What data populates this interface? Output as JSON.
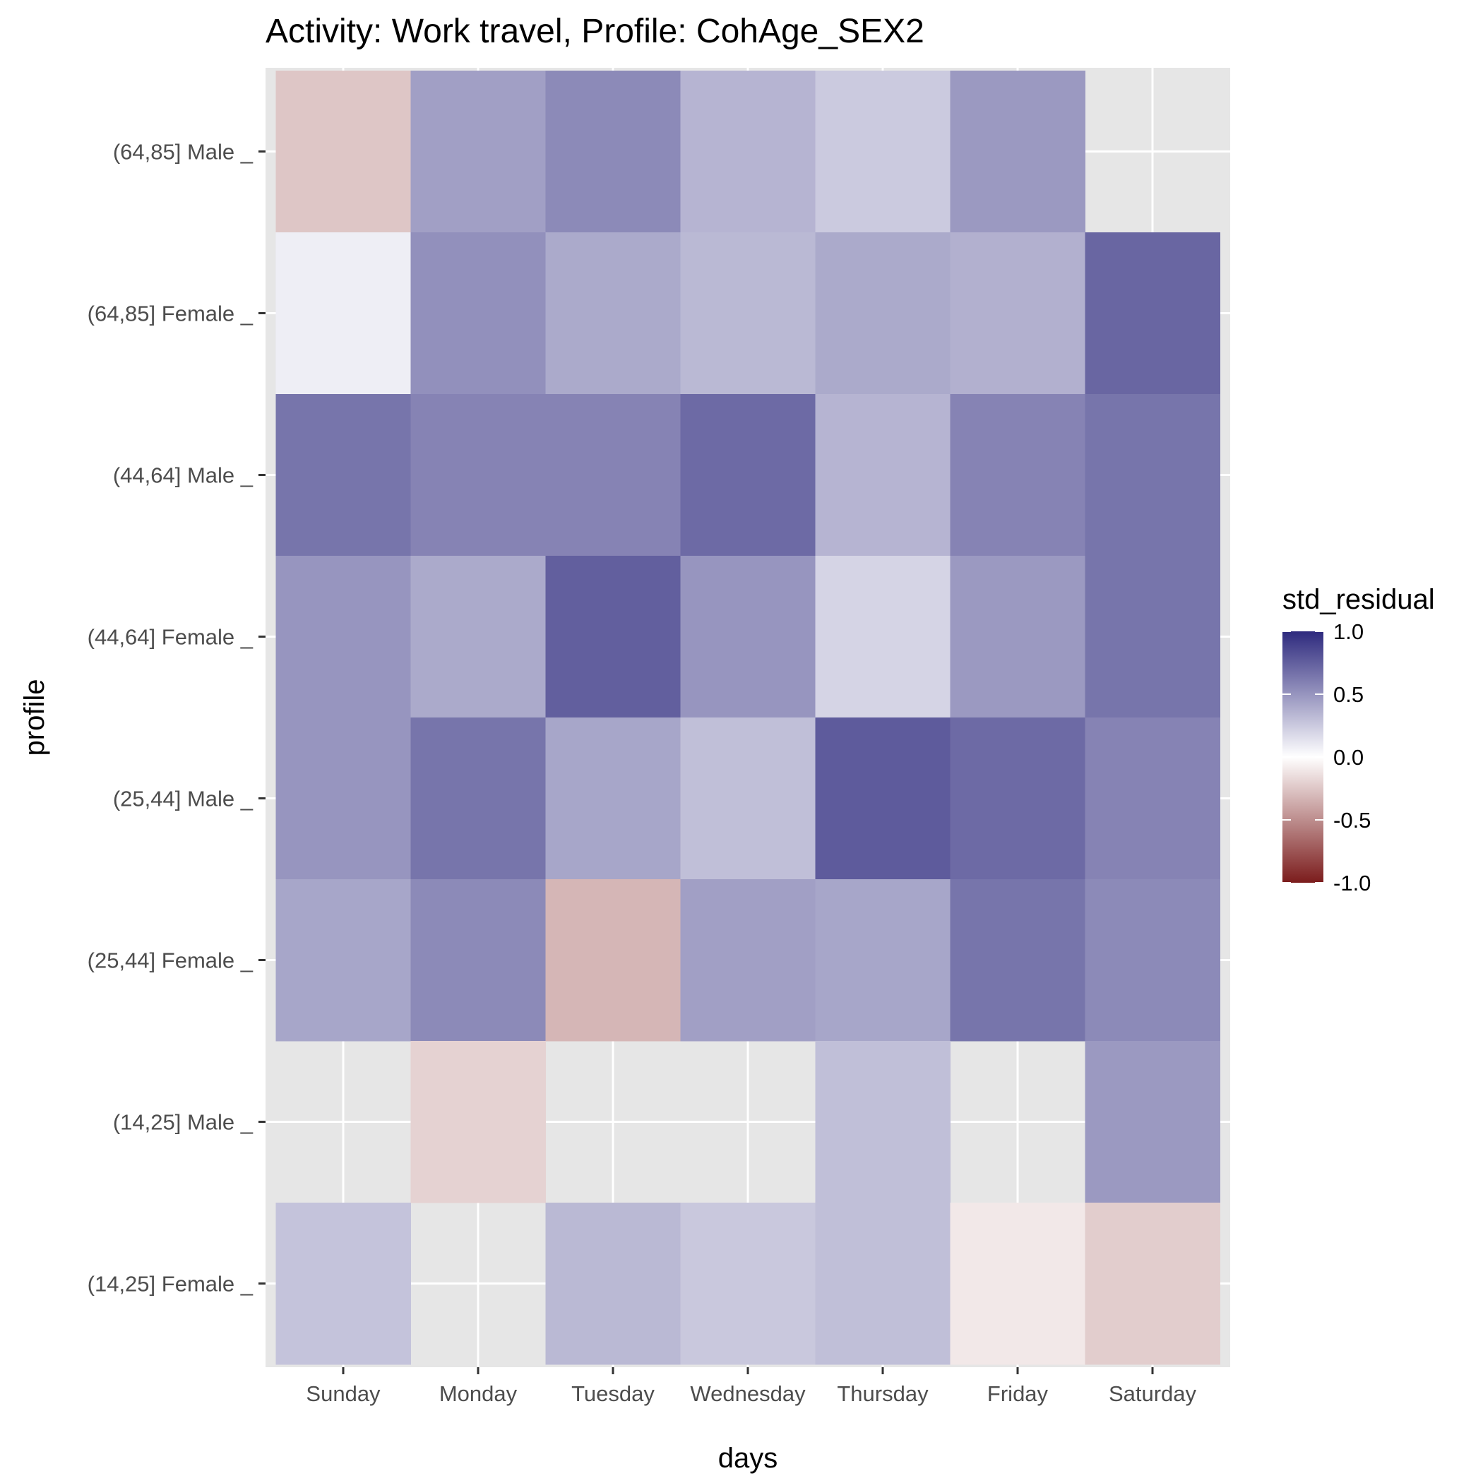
{
  "chart_data": {
    "type": "heatmap",
    "title": "Activity: Work travel, Profile: CohAge_SEX2",
    "xlabel": "days",
    "ylabel": "profile",
    "x_categories": [
      "Sunday",
      "Monday",
      "Tuesday",
      "Wednesday",
      "Thursday",
      "Friday",
      "Saturday"
    ],
    "y_categories": [
      "(64,85] Male _",
      "(64,85] Female _",
      "(44,64] Male _",
      "(44,64] Female _",
      "(25,44] Male _",
      "(25,44] Female _",
      "(14,25] Male _",
      "(14,25] Female _"
    ],
    "values": [
      [
        -0.25,
        0.45,
        0.55,
        0.35,
        0.25,
        0.48,
        null
      ],
      [
        0.08,
        0.52,
        0.4,
        0.33,
        0.4,
        0.37,
        0.72
      ],
      [
        0.65,
        0.58,
        0.58,
        0.7,
        0.35,
        0.58,
        0.65
      ],
      [
        0.5,
        0.4,
        0.75,
        0.5,
        0.2,
        0.48,
        0.65
      ],
      [
        0.5,
        0.65,
        0.42,
        0.3,
        0.77,
        0.7,
        0.58
      ],
      [
        0.42,
        0.55,
        -0.32,
        0.45,
        0.42,
        0.65,
        0.55
      ],
      [
        null,
        -0.2,
        null,
        null,
        0.3,
        null,
        0.48
      ],
      [
        0.28,
        null,
        0.33,
        0.26,
        0.3,
        -0.1,
        -0.22
      ]
    ],
    "legend": {
      "title": "std_residual",
      "ticks": [
        "1.0",
        "0.5",
        "0.0",
        "-0.5",
        "-1.0"
      ],
      "limits": [
        -1,
        1
      ],
      "colors": {
        "low": "#7b1c1c",
        "mid": "#ffffff",
        "high": "#2e2a7e"
      },
      "placement": "right"
    },
    "grid": true,
    "panel_background": "#e6e6e6"
  }
}
